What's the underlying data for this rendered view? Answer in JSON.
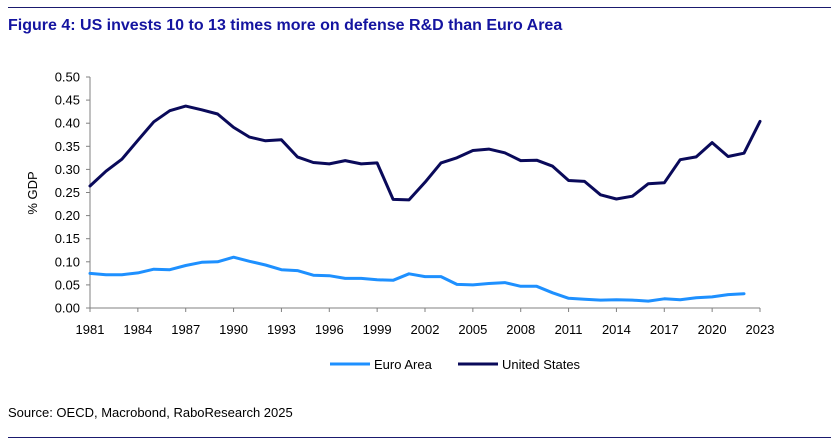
{
  "figure": {
    "title": "Figure 4: US invests 10 to 13 times more on defense R&D than Euro Area",
    "source": "Source: OECD, Macrobond, RaboResearch 2025"
  },
  "colors": {
    "title": "#1414a0",
    "euro_area": "#1e90ff",
    "united_states": "#0a0a5a",
    "rule": "#1a1a6e"
  },
  "chart_data": {
    "type": "line",
    "title": "Figure 4: US invests 10 to 13 times more on defense R&D than Euro Area",
    "xlabel": "",
    "ylabel": "% GDP",
    "ylim": [
      0,
      0.5
    ],
    "yticks": [
      "0.00",
      "0.05",
      "0.10",
      "0.15",
      "0.20",
      "0.25",
      "0.30",
      "0.35",
      "0.40",
      "0.45",
      "0.50"
    ],
    "xlim": [
      1981,
      2023
    ],
    "xticks": [
      "1981",
      "1984",
      "1987",
      "1990",
      "1993",
      "1996",
      "1999",
      "2002",
      "2005",
      "2008",
      "2011",
      "2014",
      "2017",
      "2020",
      "2023"
    ],
    "grid": false,
    "legend_position": "bottom",
    "series": [
      {
        "name": "Euro Area",
        "color": "#1e90ff",
        "x": [
          1981,
          1982,
          1983,
          1984,
          1985,
          1986,
          1987,
          1988,
          1989,
          1990,
          1991,
          1992,
          1993,
          1994,
          1995,
          1996,
          1997,
          1998,
          1999,
          2000,
          2001,
          2002,
          2003,
          2004,
          2005,
          2006,
          2007,
          2008,
          2009,
          2010,
          2011,
          2012,
          2013,
          2014,
          2015,
          2016,
          2017,
          2018,
          2019,
          2020,
          2021,
          2022
        ],
        "y": [
          0.075,
          0.072,
          0.072,
          0.076,
          0.084,
          0.083,
          0.092,
          0.099,
          0.1,
          0.11,
          0.101,
          0.093,
          0.083,
          0.081,
          0.071,
          0.07,
          0.064,
          0.064,
          0.061,
          0.06,
          0.074,
          0.068,
          0.068,
          0.051,
          0.05,
          0.053,
          0.055,
          0.047,
          0.047,
          0.033,
          0.021,
          0.019,
          0.017,
          0.018,
          0.017,
          0.015,
          0.02,
          0.018,
          0.022,
          0.024,
          0.029,
          0.031
        ]
      },
      {
        "name": "United States",
        "color": "#0a0a5a",
        "x": [
          1981,
          1982,
          1983,
          1984,
          1985,
          1986,
          1987,
          1988,
          1989,
          1990,
          1991,
          1992,
          1993,
          1994,
          1995,
          1996,
          1997,
          1998,
          1999,
          2000,
          2001,
          2002,
          2003,
          2004,
          2005,
          2006,
          2007,
          2008,
          2009,
          2010,
          2011,
          2012,
          2013,
          2014,
          2015,
          2016,
          2017,
          2018,
          2019,
          2020,
          2021,
          2022,
          2023
        ],
        "y": [
          0.264,
          0.296,
          0.322,
          0.363,
          0.403,
          0.427,
          0.437,
          0.429,
          0.42,
          0.391,
          0.37,
          0.362,
          0.364,
          0.327,
          0.315,
          0.312,
          0.319,
          0.312,
          0.314,
          0.235,
          0.234,
          0.272,
          0.314,
          0.325,
          0.341,
          0.344,
          0.336,
          0.319,
          0.32,
          0.307,
          0.276,
          0.274,
          0.245,
          0.236,
          0.242,
          0.269,
          0.271,
          0.321,
          0.327,
          0.358,
          0.328,
          0.335,
          0.404
        ]
      }
    ]
  }
}
